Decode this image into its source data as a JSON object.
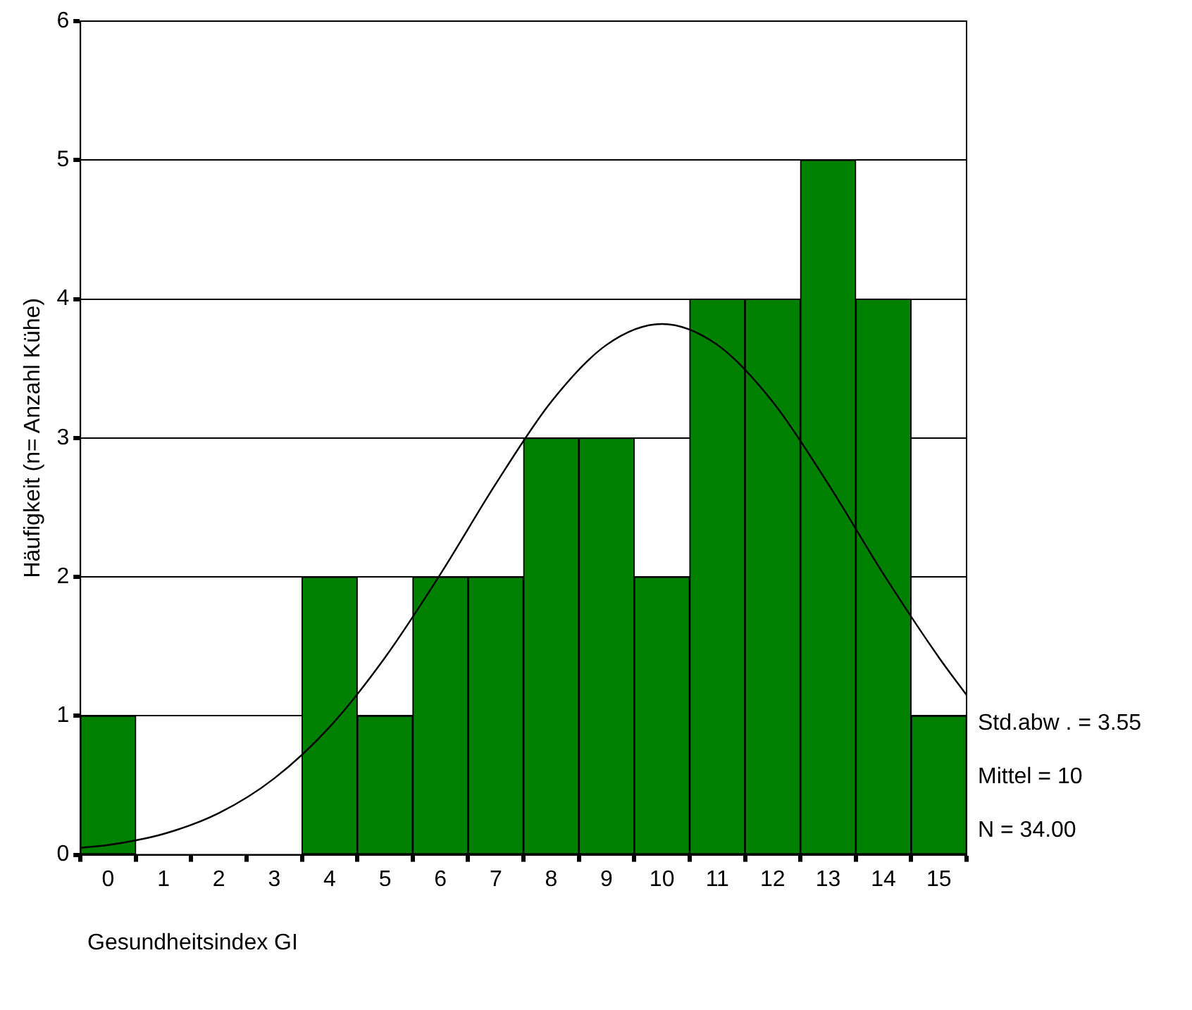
{
  "chart_data": {
    "type": "histogram",
    "xlabel": "Gesundheitsindex GI",
    "ylabel": "Häufigkeit (n= Anzahl Kühe)",
    "bins": [
      -0.5,
      0.5,
      1.5,
      2.5,
      3.5,
      4.5,
      5.5,
      6.5,
      7.5,
      8.5,
      9.5,
      10.5,
      11.5,
      12.5,
      13.5,
      14.5,
      15.5
    ],
    "values": [
      1,
      0,
      0,
      0,
      2,
      1,
      2,
      2,
      3,
      3,
      2,
      4,
      4,
      5,
      4,
      1
    ],
    "color": "#008000",
    "series": [
      {
        "type": "line",
        "color": "#000000",
        "x": [
          -0.5,
          0,
          1,
          2,
          3,
          4,
          5,
          6,
          7,
          8,
          9,
          10,
          11,
          12,
          13,
          14,
          15,
          15.5
        ],
        "values": [
          0.05,
          0.07,
          0.15,
          0.3,
          0.55,
          0.92,
          1.42,
          2.02,
          2.67,
          3.26,
          3.67,
          3.82,
          3.67,
          3.26,
          2.67,
          2.02,
          1.42,
          1.15
        ]
      }
    ],
    "xlim": [
      -0.5,
      15.5
    ],
    "xticks": [
      0,
      1,
      2,
      3,
      4,
      5,
      6,
      7,
      8,
      9,
      10,
      11,
      12,
      13,
      14,
      15
    ],
    "ylim": [
      0,
      6
    ],
    "yticks": [
      0,
      1,
      2,
      3,
      4,
      5,
      6
    ],
    "grid": "y",
    "legend": false,
    "marker": "none",
    "annotations": [
      "Std.abw . = 3.55",
      "Mittel = 10",
      "N = 34.00"
    ]
  }
}
